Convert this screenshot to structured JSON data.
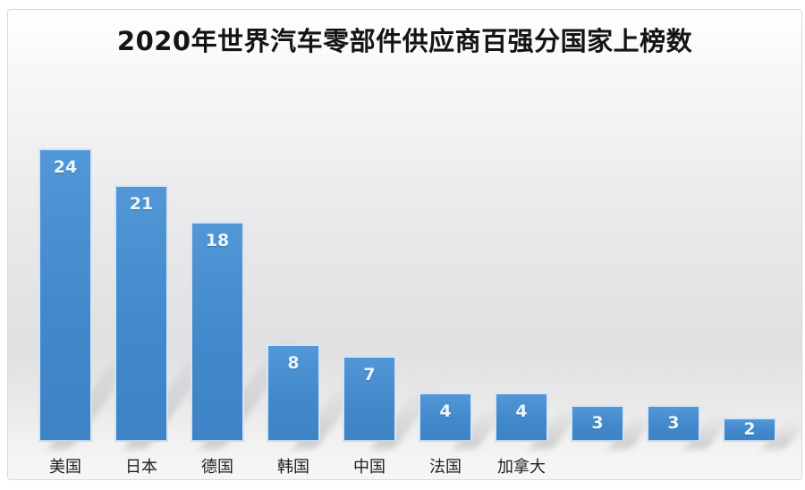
{
  "chart_data": {
    "type": "bar",
    "title": "2020年世界汽车零部件供应商百强分国家上榜数",
    "categories": [
      "美国",
      "日本",
      "德国",
      "韩国",
      "中国",
      "法国",
      "加拿大",
      "",
      "",
      ""
    ],
    "values": [
      24,
      21,
      18,
      8,
      7,
      4,
      4,
      3,
      3,
      2
    ],
    "xlabel": "",
    "ylabel": "",
    "ylim": [
      0,
      25
    ],
    "grid": false,
    "legend": false,
    "value_labels_shown_on_bars": true
  },
  "colors": {
    "bar_fill_top": "#5297d6",
    "bar_fill_bottom": "#3d83c5",
    "bar_border": "#d3e5f6",
    "value_text": "#edf6fd",
    "category_text": "#1e1e1e",
    "title_text": "#141414",
    "frame_border": "#d8d8d8",
    "background_mid": "#e0e0e2"
  }
}
